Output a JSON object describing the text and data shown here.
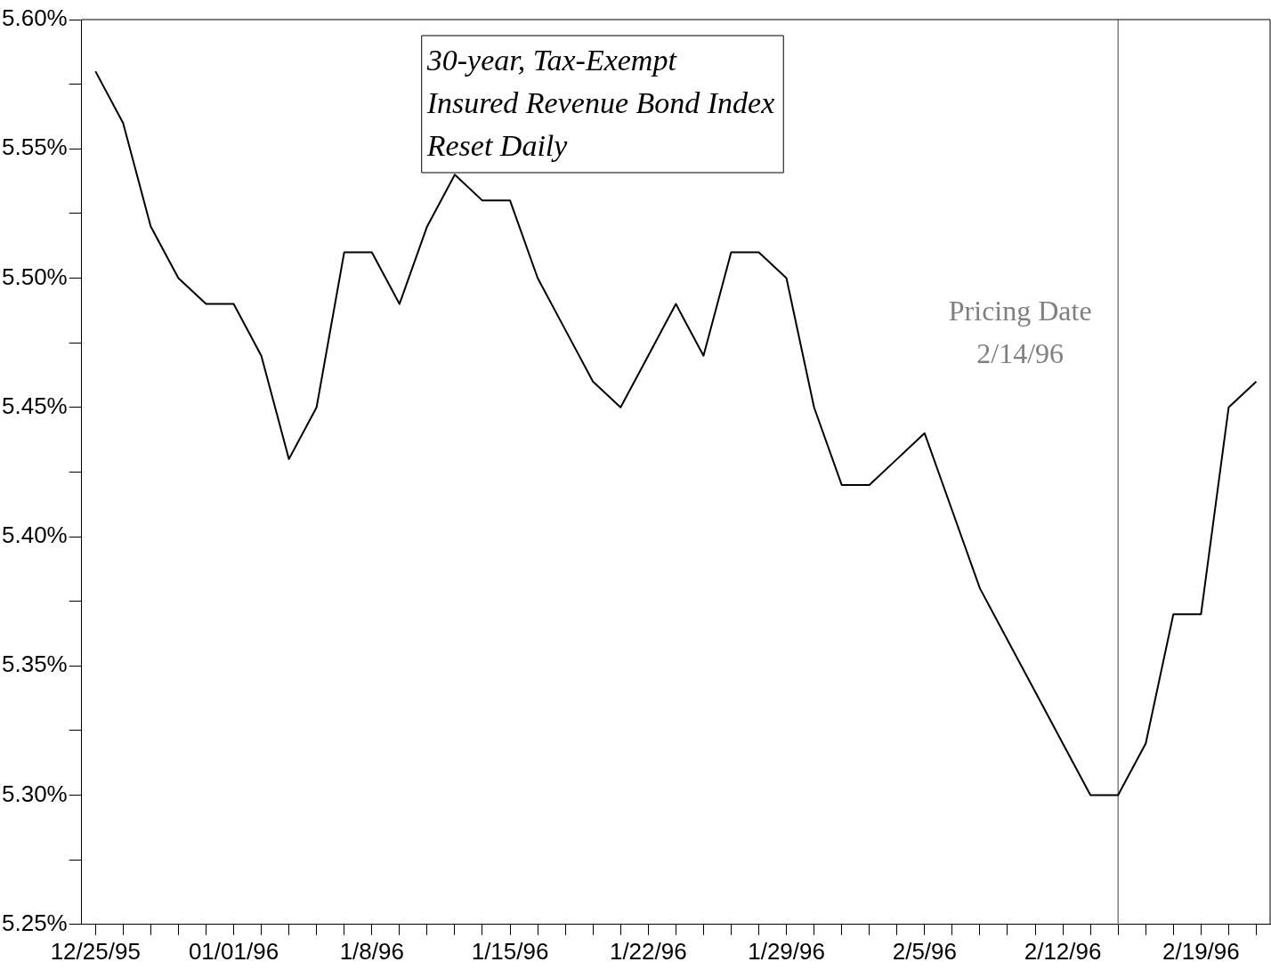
{
  "chart_data": {
    "type": "line",
    "title": "30-year, Tax-Exempt\nInsured Revenue Bond Index\nReset Daily",
    "categories": [
      "12/25/95",
      null,
      null,
      null,
      null,
      "01/01/96",
      null,
      null,
      null,
      null,
      "1/8/96",
      null,
      null,
      null,
      null,
      "1/15/96",
      null,
      null,
      null,
      null,
      "1/22/96",
      null,
      null,
      null,
      null,
      "1/29/96",
      null,
      null,
      null,
      null,
      "2/5/96",
      null,
      null,
      null,
      null,
      "2/12/96",
      null,
      null,
      null,
      null,
      "2/19/96",
      null,
      null
    ],
    "series": [
      {
        "color": "#000000",
        "values": [
          5.58,
          5.56,
          5.52,
          5.5,
          5.49,
          5.49,
          5.47,
          5.43,
          5.45,
          5.51,
          5.51,
          5.49,
          5.52,
          5.54,
          5.53,
          5.53,
          5.5,
          5.48,
          5.46,
          5.45,
          5.47,
          5.49,
          5.47,
          5.51,
          5.51,
          5.5,
          5.45,
          5.42,
          5.42,
          5.43,
          5.44,
          5.41,
          5.38,
          5.36,
          5.34,
          5.32,
          5.3,
          5.3,
          5.32,
          5.37,
          5.37,
          5.45,
          5.46
        ]
      }
    ],
    "ylim": [
      5.25,
      5.6
    ],
    "yticks": [
      {
        "value": 5.25,
        "label": "5.25%"
      },
      {
        "value": 5.275,
        "label": null
      },
      {
        "value": 5.3,
        "label": "5.30%"
      },
      {
        "value": 5.325,
        "label": null
      },
      {
        "value": 5.35,
        "label": "5.35%"
      },
      {
        "value": 5.375,
        "label": null
      },
      {
        "value": 5.4,
        "label": "5.40%"
      },
      {
        "value": 5.425,
        "label": null
      },
      {
        "value": 5.45,
        "label": "5.45%"
      },
      {
        "value": 5.475,
        "label": null
      },
      {
        "value": 5.5,
        "label": "5.50%"
      },
      {
        "value": 5.525,
        "label": null
      },
      {
        "value": 5.55,
        "label": "5.55%"
      },
      {
        "value": 5.575,
        "label": null
      },
      {
        "value": 5.6,
        "label": "5.60%"
      }
    ],
    "annotations": [
      "Pricing Date\n2/14/96"
    ],
    "legend": false,
    "marker": "none",
    "line_style": "solid"
  }
}
